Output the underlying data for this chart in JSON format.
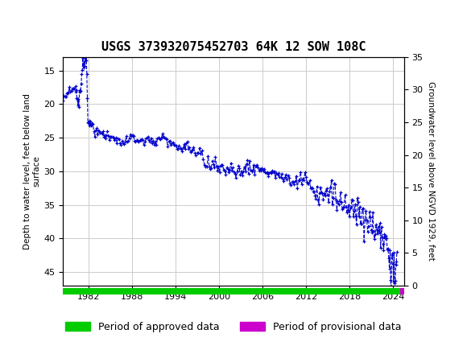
{
  "title": "USGS 373932075452703 64K 12 SOW 108C",
  "ylabel_left": "Depth to water level, feet below land\nsurface",
  "ylabel_right": "Groundwater level above NGVD 1929, feet",
  "ylim_left": [
    13,
    47
  ],
  "ylim_right": [
    0,
    35
  ],
  "xlim": [
    1978.5,
    2025.5
  ],
  "xticks": [
    1982,
    1988,
    1994,
    2000,
    2006,
    2012,
    2018,
    2024
  ],
  "yticks_left": [
    15,
    20,
    25,
    30,
    35,
    40,
    45
  ],
  "yticks_right": [
    0,
    5,
    10,
    15,
    20,
    25,
    30,
    35
  ],
  "header_color": "#1b6b3a",
  "plot_line_color": "#0000cc",
  "approved_color": "#00cc00",
  "provisional_color": "#cc00cc",
  "background_color": "#ffffff",
  "grid_color": "#cccccc",
  "title_fontsize": 11
}
